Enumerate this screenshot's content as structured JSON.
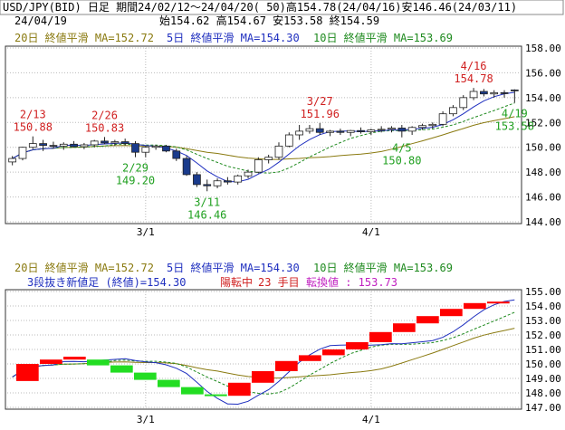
{
  "header": {
    "line1": "USD/JPY(BID) 日足 期間24/02/12～24/04/20( 50)高154.78(24/04/16)安146.46(24/03/11)",
    "date": "24/04/19",
    "ohlc": "始154.62 高154.67 安153.58 終154.59"
  },
  "ma_legend": {
    "ma20": "20日 終値平滑 MA=152.72",
    "ma5": "5日 終値平滑 MA=154.30",
    "ma10": "10日 終値平滑 MA=153.69"
  },
  "lower_info": {
    "prefix": "3段抜き新値足 (終値)=154.30",
    "status": "陽転中",
    "count": "23 手目",
    "turn": "転換値 : 153.73"
  },
  "colors": {
    "up_candle": "#ffffff",
    "down_candle": "#1a3b8c",
    "ma5": "#1f2fbf",
    "ma10": "#1e8a1e",
    "ma20": "#8a7a10",
    "high_label": "#d02020",
    "low_label": "#20a020",
    "kagi_up": "#ff0000",
    "kagi_down": "#22dd22",
    "grid": "#bbbbbb"
  },
  "chart_data": [
    {
      "type": "candlestick",
      "ylim": [
        144,
        158
      ],
      "y_ticks": [
        "144.00",
        "146.00",
        "148.00",
        "150.00",
        "152.00",
        "154.00",
        "156.00",
        "158.00"
      ],
      "x_ticks": [
        "3/1",
        "4/1"
      ],
      "x_tick_index": [
        13,
        35
      ],
      "candles": [
        {
          "o": 148.82,
          "h": 149.3,
          "l": 148.55,
          "c": 149.1
        },
        {
          "o": 149.1,
          "h": 150.05,
          "l": 148.95,
          "c": 150.0
        },
        {
          "o": 150.0,
          "h": 150.88,
          "l": 149.85,
          "c": 150.3
        },
        {
          "o": 150.3,
          "h": 150.6,
          "l": 149.7,
          "c": 150.15
        },
        {
          "o": 150.15,
          "h": 150.45,
          "l": 149.9,
          "c": 150.1
        },
        {
          "o": 150.1,
          "h": 150.4,
          "l": 149.8,
          "c": 150.25
        },
        {
          "o": 150.25,
          "h": 150.5,
          "l": 150.0,
          "c": 150.05
        },
        {
          "o": 150.05,
          "h": 150.35,
          "l": 149.85,
          "c": 150.2
        },
        {
          "o": 150.2,
          "h": 150.6,
          "l": 150.0,
          "c": 150.5
        },
        {
          "o": 150.5,
          "h": 150.83,
          "l": 150.25,
          "c": 150.35
        },
        {
          "o": 150.35,
          "h": 150.6,
          "l": 150.1,
          "c": 150.45
        },
        {
          "o": 150.45,
          "h": 150.7,
          "l": 150.15,
          "c": 150.3
        },
        {
          "o": 150.3,
          "h": 150.5,
          "l": 149.2,
          "c": 149.6
        },
        {
          "o": 149.6,
          "h": 150.1,
          "l": 149.2,
          "c": 150.0
        },
        {
          "o": 150.0,
          "h": 150.2,
          "l": 149.8,
          "c": 150.1
        },
        {
          "o": 150.1,
          "h": 150.2,
          "l": 149.6,
          "c": 149.7
        },
        {
          "o": 149.7,
          "h": 149.9,
          "l": 148.9,
          "c": 149.1
        },
        {
          "o": 149.1,
          "h": 149.3,
          "l": 147.7,
          "c": 147.8
        },
        {
          "o": 147.8,
          "h": 148.0,
          "l": 146.8,
          "c": 147.0
        },
        {
          "o": 147.0,
          "h": 147.4,
          "l": 146.46,
          "c": 146.9
        },
        {
          "o": 146.9,
          "h": 147.5,
          "l": 146.7,
          "c": 147.3
        },
        {
          "o": 147.3,
          "h": 147.6,
          "l": 147.0,
          "c": 147.2
        },
        {
          "o": 147.2,
          "h": 147.8,
          "l": 147.0,
          "c": 147.7
        },
        {
          "o": 147.7,
          "h": 148.2,
          "l": 147.5,
          "c": 148.0
        },
        {
          "o": 148.0,
          "h": 149.2,
          "l": 147.9,
          "c": 149.0
        },
        {
          "o": 149.0,
          "h": 149.4,
          "l": 148.7,
          "c": 149.2
        },
        {
          "o": 149.2,
          "h": 150.4,
          "l": 149.0,
          "c": 150.1
        },
        {
          "o": 150.1,
          "h": 151.2,
          "l": 150.0,
          "c": 151.0
        },
        {
          "o": 151.0,
          "h": 151.8,
          "l": 150.6,
          "c": 151.3
        },
        {
          "o": 151.3,
          "h": 151.8,
          "l": 151.1,
          "c": 151.5
        },
        {
          "o": 151.5,
          "h": 151.96,
          "l": 151.0,
          "c": 151.2
        },
        {
          "o": 151.2,
          "h": 151.4,
          "l": 150.9,
          "c": 151.3
        },
        {
          "o": 151.3,
          "h": 151.5,
          "l": 151.0,
          "c": 151.2
        },
        {
          "o": 151.2,
          "h": 151.4,
          "l": 150.9,
          "c": 151.35
        },
        {
          "o": 151.35,
          "h": 151.6,
          "l": 151.1,
          "c": 151.25
        },
        {
          "o": 151.25,
          "h": 151.5,
          "l": 151.0,
          "c": 151.4
        },
        {
          "o": 151.4,
          "h": 151.7,
          "l": 151.2,
          "c": 151.45
        },
        {
          "o": 151.45,
          "h": 151.7,
          "l": 151.2,
          "c": 151.55
        },
        {
          "o": 151.55,
          "h": 151.8,
          "l": 150.8,
          "c": 151.3
        },
        {
          "o": 151.3,
          "h": 151.7,
          "l": 151.0,
          "c": 151.6
        },
        {
          "o": 151.6,
          "h": 151.9,
          "l": 151.4,
          "c": 151.75
        },
        {
          "o": 151.75,
          "h": 152.0,
          "l": 151.5,
          "c": 151.85
        },
        {
          "o": 151.85,
          "h": 152.9,
          "l": 151.7,
          "c": 152.7
        },
        {
          "o": 152.7,
          "h": 153.4,
          "l": 152.5,
          "c": 153.2
        },
        {
          "o": 153.2,
          "h": 154.2,
          "l": 153.0,
          "c": 154.0
        },
        {
          "o": 154.0,
          "h": 154.78,
          "l": 153.8,
          "c": 154.5
        },
        {
          "o": 154.5,
          "h": 154.7,
          "l": 154.1,
          "c": 154.3
        },
        {
          "o": 154.3,
          "h": 154.6,
          "l": 154.0,
          "c": 154.4
        },
        {
          "o": 154.4,
          "h": 154.6,
          "l": 154.0,
          "c": 154.35
        },
        {
          "o": 154.62,
          "h": 154.67,
          "l": 153.58,
          "c": 154.59
        }
      ],
      "annotations": [
        {
          "i": 2,
          "kind": "high",
          "date": "2/13",
          "value": "150.88"
        },
        {
          "i": 9,
          "kind": "high",
          "date": "2/26",
          "value": "150.83"
        },
        {
          "i": 12,
          "kind": "low",
          "date": "2/29",
          "value": "149.20"
        },
        {
          "i": 19,
          "kind": "low",
          "date": "3/11",
          "value": "146.46"
        },
        {
          "i": 30,
          "kind": "high",
          "date": "3/27",
          "value": "151.96"
        },
        {
          "i": 38,
          "kind": "low",
          "date": "4/5",
          "value": "150.80"
        },
        {
          "i": 45,
          "kind": "high",
          "date": "4/16",
          "value": "154.78"
        },
        {
          "i": 49,
          "kind": "low",
          "date": "4/19",
          "value": "153.58"
        }
      ]
    },
    {
      "type": "kagi-bricks",
      "ylim": [
        147,
        155
      ],
      "y_ticks": [
        "147.00",
        "148.00",
        "149.00",
        "150.00",
        "151.00",
        "152.00",
        "153.00",
        "154.00",
        "155.00"
      ],
      "x_ticks": [
        "3/1",
        "4/1"
      ],
      "bricks": [
        {
          "o": 148.82,
          "c": 150.0,
          "up": true
        },
        {
          "o": 150.0,
          "c": 150.3,
          "up": true
        },
        {
          "o": 150.3,
          "c": 150.5,
          "up": true
        },
        {
          "o": 150.3,
          "c": 149.9,
          "up": false
        },
        {
          "o": 149.9,
          "c": 149.4,
          "up": false
        },
        {
          "o": 149.4,
          "c": 148.9,
          "up": false
        },
        {
          "o": 148.9,
          "c": 148.4,
          "up": false
        },
        {
          "o": 148.4,
          "c": 147.9,
          "up": false
        },
        {
          "o": 147.9,
          "c": 147.8,
          "up": false
        },
        {
          "o": 147.8,
          "c": 148.7,
          "up": true
        },
        {
          "o": 148.7,
          "c": 149.5,
          "up": true
        },
        {
          "o": 149.5,
          "c": 150.2,
          "up": true
        },
        {
          "o": 150.2,
          "c": 150.6,
          "up": true
        },
        {
          "o": 150.6,
          "c": 151.0,
          "up": true
        },
        {
          "o": 151.0,
          "c": 151.5,
          "up": true
        },
        {
          "o": 151.5,
          "c": 152.2,
          "up": true
        },
        {
          "o": 152.2,
          "c": 152.8,
          "up": true
        },
        {
          "o": 152.8,
          "c": 153.3,
          "up": true
        },
        {
          "o": 153.3,
          "c": 153.8,
          "up": true
        },
        {
          "o": 153.8,
          "c": 154.2,
          "up": true
        },
        {
          "o": 154.2,
          "c": 154.3,
          "up": true
        }
      ]
    }
  ]
}
